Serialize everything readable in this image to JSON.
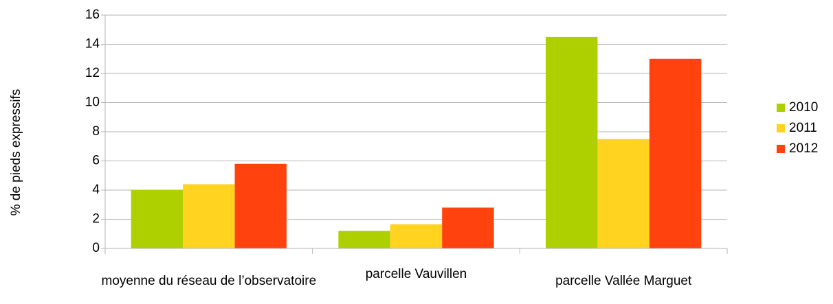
{
  "chart_data": {
    "type": "bar",
    "categories": [
      "moyenne du réseau de l’observatoire",
      "parcelle Vauvillen",
      "parcelle Vallée Marguet"
    ],
    "series": [
      {
        "name": "2010",
        "color": "#aecf00",
        "values": [
          4.0,
          1.2,
          14.5
        ]
      },
      {
        "name": "2011",
        "color": "#ffd320",
        "values": [
          4.4,
          1.65,
          7.5
        ]
      },
      {
        "name": "2012",
        "color": "#ff420e",
        "values": [
          5.8,
          2.8,
          13.0
        ]
      }
    ],
    "y_label": "% de pieds expressifs",
    "ylim": [
      0,
      16
    ],
    "yticks": [
      0,
      2,
      4,
      6,
      8,
      10,
      12,
      14,
      16
    ],
    "grid": true,
    "legend": "right"
  }
}
